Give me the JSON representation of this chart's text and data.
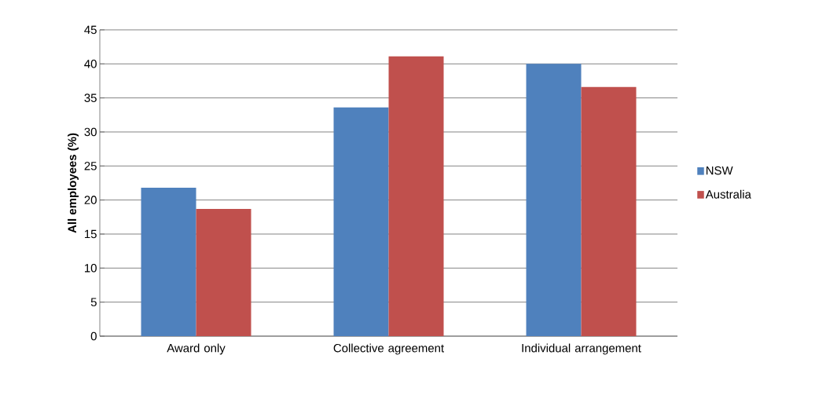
{
  "chart_data": {
    "type": "bar",
    "ylabel": "All employees (%)",
    "categories": [
      "Award only",
      "Collective agreement",
      "Individual arrangement"
    ],
    "series": [
      {
        "name": "NSW",
        "color": "#4f81bd",
        "values": [
          21.8,
          33.6,
          40.0
        ]
      },
      {
        "name": "Australia",
        "color": "#c0504d",
        "values": [
          18.7,
          41.1,
          36.6
        ]
      }
    ],
    "ylim": [
      0,
      45
    ],
    "yticks": [
      0,
      5,
      10,
      15,
      20,
      25,
      30,
      35,
      40,
      45
    ],
    "grid": "y",
    "legend": "right"
  }
}
